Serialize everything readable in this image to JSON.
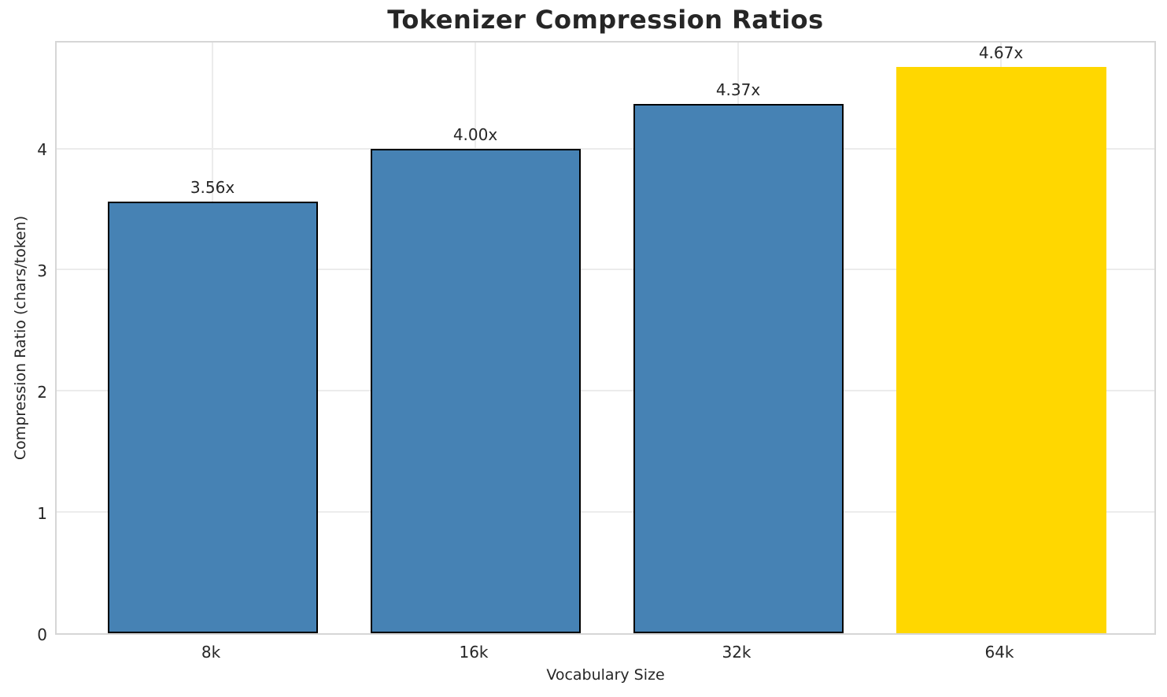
{
  "chart_data": {
    "type": "bar",
    "title": "Tokenizer Compression Ratios",
    "xlabel": "Vocabulary Size",
    "ylabel": "Compression Ratio (chars/token)",
    "categories": [
      "8k",
      "16k",
      "32k",
      "64k"
    ],
    "values": [
      3.56,
      4.0,
      4.37,
      4.67
    ],
    "bar_labels": [
      "3.56x",
      "4.00x",
      "4.37x",
      "4.67x"
    ],
    "ytick_labels": [
      "0",
      "1",
      "2",
      "3",
      "4"
    ],
    "yticks": [
      0,
      1,
      2,
      3,
      4
    ],
    "ylim": [
      0,
      4.9
    ],
    "grid": true,
    "legend": "none",
    "bar_colors": [
      "#4682b4",
      "#4682b4",
      "#4682b4",
      "#ffd700"
    ],
    "bar_edge_colors": [
      "#000000",
      "#000000",
      "#000000",
      "#ffd700"
    ],
    "highlight_index": 3
  },
  "colors": {
    "background": "#ffffff",
    "grid": "#ececec",
    "spine": "#d6d6d6",
    "text": "#262626",
    "bar_blue": "#4682b4",
    "bar_gold": "#ffd700",
    "bar_edge": "#000000"
  }
}
